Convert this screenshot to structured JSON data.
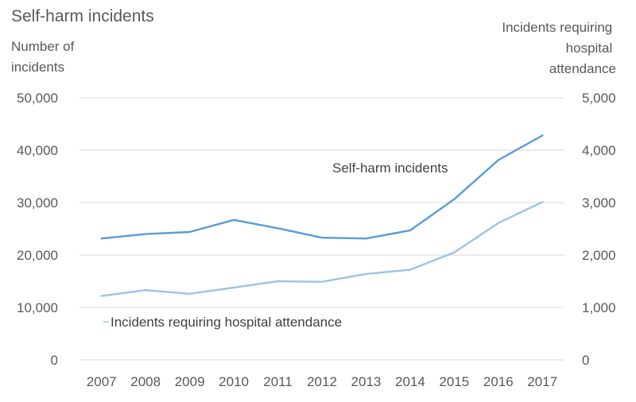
{
  "chart_data": {
    "type": "line",
    "title": "Self-harm incidents",
    "categories": [
      "2007",
      "2008",
      "2009",
      "2010",
      "2011",
      "2012",
      "2013",
      "2014",
      "2015",
      "2016",
      "2017"
    ],
    "y_left": {
      "label_lines": [
        "Number of",
        "incidents"
      ],
      "lim": [
        0,
        50000
      ],
      "ticks": [
        "0",
        "10,000",
        "20,000",
        "30,000",
        "40,000",
        "50,000"
      ]
    },
    "y_right": {
      "label_lines": [
        "Incidents requiring",
        "hospital",
        "attendance"
      ],
      "lim": [
        0,
        5000
      ],
      "ticks": [
        "0",
        "1,000",
        "2,000",
        "3,000",
        "4,000",
        "5,000"
      ]
    },
    "grid": true,
    "legend": "inline labels",
    "series": [
      {
        "name": "Self-harm incidents",
        "axis": "left",
        "color": "#5b9bd5",
        "values": [
          23150,
          24000,
          24400,
          26700,
          25100,
          23300,
          23150,
          24700,
          30650,
          38100,
          42800
        ]
      },
      {
        "name": "Incidents requiring hospital attendance",
        "axis": "right",
        "color": "#9dc3e6",
        "values": [
          1220,
          1330,
          1260,
          1380,
          1500,
          1490,
          1640,
          1720,
          2050,
          2610,
          3010
        ]
      }
    ]
  }
}
